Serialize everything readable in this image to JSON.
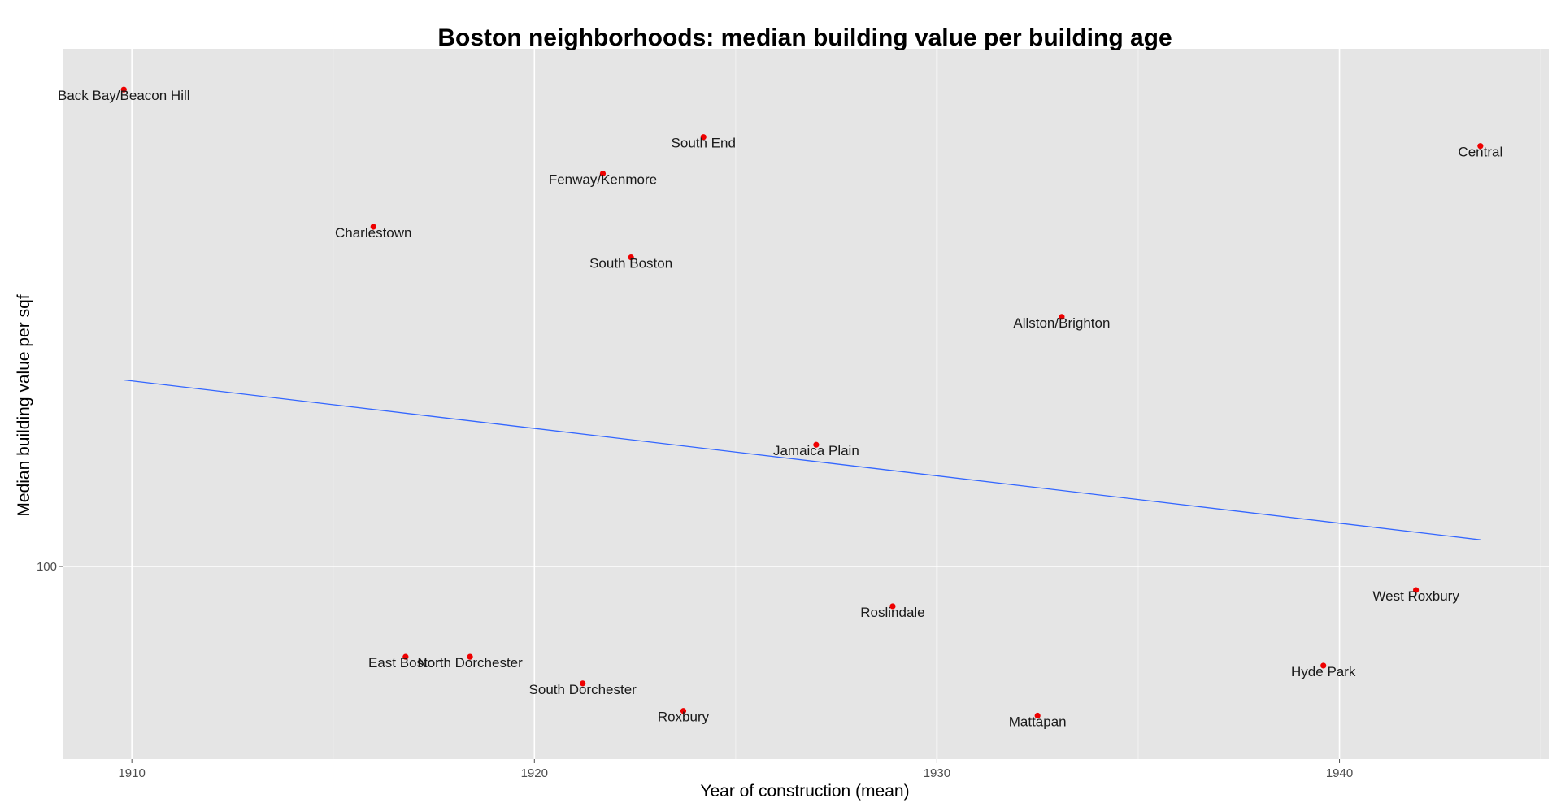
{
  "chart_data": {
    "type": "scatter",
    "title": "Boston neighborhoods: median building value per building age",
    "xlabel": "Year of construction (mean)",
    "ylabel": "Median building value per sqf",
    "x_ticks": [
      1910,
      1920,
      1930,
      1940
    ],
    "y_ticks": [
      100
    ],
    "y_scale": "log10",
    "xlim": [
      1908.3,
      1945.2
    ],
    "ylim": [
      78,
      195
    ],
    "grid": true,
    "point_color": "#ee0000",
    "line_color": "#3366ff",
    "panel_color": "#e5e5e5",
    "points": [
      {
        "label": "Back Bay/Beacon Hill",
        "x": 1909.8,
        "y": 185
      },
      {
        "label": "South End",
        "x": 1924.2,
        "y": 174
      },
      {
        "label": "Central",
        "x": 1943.5,
        "y": 172
      },
      {
        "label": "Fenway/Kenmore",
        "x": 1921.7,
        "y": 166
      },
      {
        "label": "Charlestown",
        "x": 1916.0,
        "y": 155
      },
      {
        "label": "South Boston",
        "x": 1922.4,
        "y": 149
      },
      {
        "label": "Allston/Brighton",
        "x": 1933.1,
        "y": 138
      },
      {
        "label": "Jamaica Plain",
        "x": 1927.0,
        "y": 117
      },
      {
        "label": "West Roxbury",
        "x": 1941.9,
        "y": 97
      },
      {
        "label": "Roslindale",
        "x": 1928.9,
        "y": 95
      },
      {
        "label": "Hyde Park",
        "x": 1939.6,
        "y": 88
      },
      {
        "label": "East Boston",
        "x": 1916.8,
        "y": 89
      },
      {
        "label": "North Dorchester",
        "x": 1918.4,
        "y": 89
      },
      {
        "label": "South Dorchester",
        "x": 1921.2,
        "y": 86
      },
      {
        "label": "Roxbury",
        "x": 1923.7,
        "y": 83
      },
      {
        "label": "Mattapan",
        "x": 1932.5,
        "y": 82.5
      }
    ],
    "trend_line": {
      "x": [
        1909.8,
        1943.5
      ],
      "y": [
        127.2,
        103.5
      ]
    }
  }
}
